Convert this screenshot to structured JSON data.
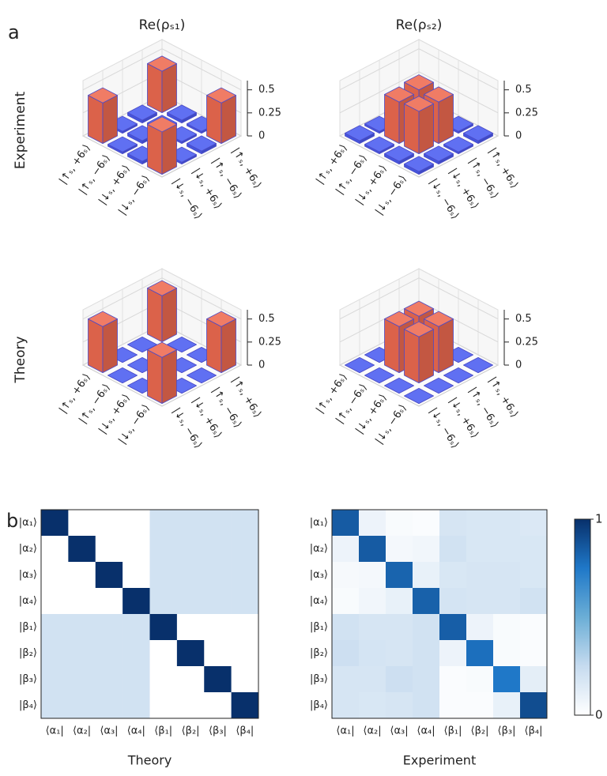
{
  "panel_labels": [
    "a",
    "b"
  ],
  "row_labels": [
    "Experiment",
    "Theory"
  ],
  "column_titles": [
    "Re(ρₛ₁)",
    "Re(ρₛ₂)"
  ],
  "colorbar": {
    "clim": [
      0,
      1
    ],
    "ticks": [
      0,
      1
    ],
    "colorscale": [
      "#ffffff",
      "#c6dbef",
      "#6baed6",
      "#1f78c8",
      "#08306b"
    ]
  },
  "chart_data": [
    {
      "type": "bar3d",
      "labels": [
        "|↑ₛ, +6ₛ⟩",
        "|↑ₛ, −6ₛ⟩",
        "|↓ₛ, +6ₛ⟩",
        "|↓ₛ, −6ₛ⟩"
      ],
      "values": [
        [
          0.45,
          0.03,
          0.02,
          0.44
        ],
        [
          0.03,
          0.03,
          0.02,
          0.03
        ],
        [
          0.02,
          0.03,
          0.03,
          0.02
        ],
        [
          0.44,
          0.02,
          0.03,
          0.46
        ]
      ],
      "zlim": [
        0,
        0.6
      ],
      "zticks": [
        0,
        0.25,
        0.5
      ],
      "high_color": "#ee6a50",
      "low_color": "#4a5cf0"
    },
    {
      "type": "bar3d",
      "labels": [
        "|↑ₛ, +6ₛ⟩",
        "|↑ₛ, −6ₛ⟩",
        "|↓ₛ, +6ₛ⟩",
        "|↓ₛ, −6ₛ⟩"
      ],
      "values": [
        [
          0.03,
          0.03,
          0.02,
          0.03
        ],
        [
          0.03,
          0.47,
          0.45,
          0.02
        ],
        [
          0.02,
          0.45,
          0.46,
          0.03
        ],
        [
          0.03,
          0.02,
          0.03,
          0.03
        ]
      ],
      "zlim": [
        0,
        0.6
      ],
      "zticks": [
        0,
        0.25,
        0.5
      ],
      "high_color": "#ee6a50",
      "low_color": "#4a5cf0"
    },
    {
      "type": "bar3d",
      "labels": [
        "|↑ₛ, +6ₛ⟩",
        "|↑ₛ, −6ₛ⟩",
        "|↓ₛ, +6ₛ⟩",
        "|↓ₛ, −6ₛ⟩"
      ],
      "values": [
        [
          0.5,
          0,
          0,
          0.5
        ],
        [
          0,
          0,
          0,
          0
        ],
        [
          0,
          0,
          0,
          0
        ],
        [
          0.5,
          0,
          0,
          0.5
        ]
      ],
      "zlim": [
        0,
        0.6
      ],
      "zticks": [
        0,
        0.25,
        0.5
      ],
      "high_color": "#ee6a50",
      "low_color": "#4a5cf0"
    },
    {
      "type": "bar3d",
      "labels": [
        "|↑ₛ, +6ₛ⟩",
        "|↑ₛ, −6ₛ⟩",
        "|↓ₛ, +6ₛ⟩",
        "|↓ₛ, −6ₛ⟩"
      ],
      "values": [
        [
          0,
          0,
          0,
          0
        ],
        [
          0,
          0.5,
          0.5,
          0
        ],
        [
          0,
          0.5,
          0.5,
          0
        ],
        [
          0,
          0,
          0,
          0
        ]
      ],
      "zlim": [
        0,
        0.6
      ],
      "zticks": [
        0,
        0.25,
        0.5
      ],
      "high_color": "#ee6a50",
      "low_color": "#4a5cf0"
    },
    {
      "type": "heatmap",
      "title": "Theory",
      "row_labels": [
        "|α₁⟩",
        "|α₂⟩",
        "|α₃⟩",
        "|α₄⟩",
        "|β₁⟩",
        "|β₂⟩",
        "|β₃⟩",
        "|β₄⟩"
      ],
      "col_labels": [
        "⟨α₁|",
        "⟨α₂|",
        "⟨α₃|",
        "⟨α₄|",
        "⟨β₁|",
        "⟨β₂|",
        "⟨β₃|",
        "⟨β₄|"
      ],
      "values": [
        [
          1,
          0,
          0,
          0,
          0.2,
          0.2,
          0.2,
          0.2
        ],
        [
          0,
          1,
          0,
          0,
          0.2,
          0.2,
          0.2,
          0.2
        ],
        [
          0,
          0,
          1,
          0,
          0.2,
          0.2,
          0.2,
          0.2
        ],
        [
          0,
          0,
          0,
          1,
          0.2,
          0.2,
          0.2,
          0.2
        ],
        [
          0.2,
          0.2,
          0.2,
          0.2,
          1,
          0,
          0,
          0
        ],
        [
          0.2,
          0.2,
          0.2,
          0.2,
          0,
          1,
          0,
          0
        ],
        [
          0.2,
          0.2,
          0.2,
          0.2,
          0,
          0,
          1,
          0
        ],
        [
          0.2,
          0.2,
          0.2,
          0.2,
          0,
          0,
          0,
          1
        ]
      ]
    },
    {
      "type": "heatmap",
      "title": "Experiment",
      "row_labels": [
        "|α₁⟩",
        "|α₂⟩",
        "|α₃⟩",
        "|α₄⟩",
        "|β₁⟩",
        "|β₂⟩",
        "|β₃⟩",
        "|β₄⟩"
      ],
      "col_labels": [
        "⟨α₁|",
        "⟨α₂|",
        "⟨α₃|",
        "⟨α₄|",
        "⟨β₁|",
        "⟨β₂|",
        "⟨β₃|",
        "⟨β₄|"
      ],
      "values": [
        [
          0.85,
          0.08,
          0.03,
          0.02,
          0.18,
          0.17,
          0.17,
          0.16
        ],
        [
          0.08,
          0.85,
          0.05,
          0.06,
          0.2,
          0.17,
          0.17,
          0.17
        ],
        [
          0.04,
          0.05,
          0.82,
          0.1,
          0.17,
          0.18,
          0.18,
          0.17
        ],
        [
          0.03,
          0.06,
          0.1,
          0.83,
          0.19,
          0.18,
          0.18,
          0.2
        ],
        [
          0.2,
          0.18,
          0.18,
          0.2,
          0.84,
          0.08,
          0.03,
          0.02
        ],
        [
          0.22,
          0.19,
          0.18,
          0.2,
          0.08,
          0.78,
          0.03,
          0.02
        ],
        [
          0.18,
          0.18,
          0.22,
          0.2,
          0.02,
          0.03,
          0.75,
          0.12
        ],
        [
          0.18,
          0.17,
          0.18,
          0.2,
          0.02,
          0.02,
          0.1,
          0.9
        ]
      ]
    }
  ]
}
